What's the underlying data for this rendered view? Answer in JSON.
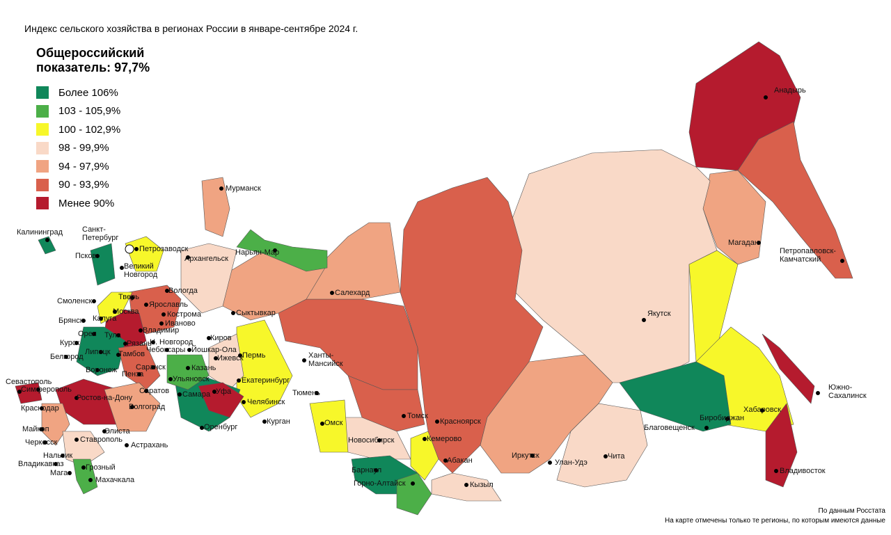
{
  "title": "Индекс сельского хозяйства в регионах России в январе-сентябре 2024 г.",
  "headline": "Общероссийский показатель: 97,7%",
  "legend": [
    {
      "label": "Более 106%",
      "color": "#10875a"
    },
    {
      "label": "103 - 105,9%",
      "color": "#4caf48"
    },
    {
      "label": "100 - 102,9%",
      "color": "#f7f72a"
    },
    {
      "label": "98 - 99,9%",
      "color": "#f9d9c7"
    },
    {
      "label": "94 - 97,9%",
      "color": "#f0a482"
    },
    {
      "label": "90 - 93,9%",
      "color": "#d9604c"
    },
    {
      "label": "Менее 90%",
      "color": "#b51b2e"
    }
  ],
  "cities": [
    "Мурманск",
    "Калининград",
    "Санкт-Петербург",
    "Петрозаводск",
    "Псков",
    "Великий Новгород",
    "Архангельск",
    "Нарьян-Мар",
    "Вологда",
    "Тверь",
    "Смоленск",
    "Ярославль",
    "Москва",
    "Кострома",
    "Иваново",
    "Брянск",
    "Калуга",
    "Владимир",
    "Тула",
    "Орел",
    "Рязань",
    "Н. Новгород",
    "Курск",
    "Чебоксары",
    "Йошкар-Ола",
    "Киров",
    "Сыктывкар",
    "Салехард",
    "Якутск",
    "Анадырь",
    "Магадан",
    "Петропавловск-Камчатский",
    "Южно-Сахалинск",
    "Хабаровск",
    "Биробиджан",
    "Благовещенск",
    "Владивосток",
    "Чита",
    "Улан-Удэ",
    "Иркутск",
    "Кызыл",
    "Абакан",
    "Красноярск",
    "Кемерово",
    "Томск",
    "Новосибирск",
    "Барнаул",
    "Горно-Алтайск",
    "Омск",
    "Ханты-Мансийск",
    "Тюмень",
    "Курган",
    "Челябинск",
    "Екатеринбург",
    "Пермь",
    "Ижевск",
    "Уфа",
    "Оренбург",
    "Казань",
    "Ульяновск",
    "Самара",
    "Саратов",
    "Пенза",
    "Саранск",
    "Тамбов",
    "Липецк",
    "Белгород",
    "Воронеж",
    "Ростов-на-Дону",
    "Волгоград",
    "Элиста",
    "Астрахань",
    "Ставрополь",
    "Краснодар",
    "Майкоп",
    "Черкесск",
    "Нальчик",
    "Владикавказ",
    "Магас",
    "Грозный",
    "Махачкала",
    "Симферополь",
    "Севастополь"
  ],
  "footnotes": [
    "По данным Росстата",
    "На карте отмечены только те регионы, по которым имеются данные"
  ]
}
